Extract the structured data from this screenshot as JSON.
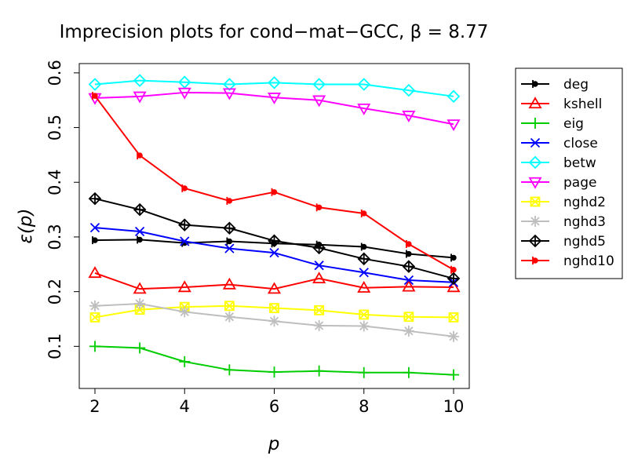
{
  "chart_data": {
    "type": "line",
    "title": "Imprecision plots for cond−mat−GCC, β = 8.77",
    "xlabel": "p",
    "ylabel": "ε(p)",
    "xlim": [
      1.65,
      10.35
    ],
    "ylim": [
      0.023,
      0.617
    ],
    "xticks": [
      2,
      4,
      6,
      8,
      10
    ],
    "yticks": [
      0.1,
      0.2,
      0.3,
      0.4,
      0.5,
      0.6
    ],
    "x": [
      2,
      3,
      4,
      5,
      6,
      7,
      8,
      9,
      10
    ],
    "grid": false,
    "legend_position": "outside-right",
    "series": [
      {
        "name": "deg",
        "color": "#000000",
        "marker": "tri-left",
        "values": [
          0.294,
          0.295,
          0.289,
          0.292,
          0.288,
          0.286,
          0.282,
          0.269,
          0.262
        ]
      },
      {
        "name": "kshell",
        "color": "#ff0000",
        "marker": "triangle-up",
        "values": [
          0.234,
          0.205,
          0.208,
          0.213,
          0.205,
          0.224,
          0.207,
          0.209,
          0.208
        ]
      },
      {
        "name": "eig",
        "color": "#00cd00",
        "marker": "plus",
        "values": [
          0.1,
          0.097,
          0.072,
          0.057,
          0.053,
          0.055,
          0.052,
          0.052,
          0.048
        ]
      },
      {
        "name": "close",
        "color": "#0000ff",
        "marker": "cross",
        "values": [
          0.317,
          0.31,
          0.292,
          0.279,
          0.271,
          0.248,
          0.235,
          0.221,
          0.217
        ]
      },
      {
        "name": "betw",
        "color": "#00ffff",
        "marker": "diamond",
        "values": [
          0.579,
          0.586,
          0.583,
          0.579,
          0.582,
          0.579,
          0.579,
          0.568,
          0.557
        ]
      },
      {
        "name": "page",
        "color": "#ff00ff",
        "marker": "triangle-down",
        "values": [
          0.554,
          0.557,
          0.564,
          0.563,
          0.555,
          0.55,
          0.535,
          0.522,
          0.506
        ]
      },
      {
        "name": "nghd2",
        "color": "#ffff00",
        "marker": "square-x",
        "values": [
          0.153,
          0.167,
          0.172,
          0.174,
          0.17,
          0.166,
          0.158,
          0.154,
          0.153
        ]
      },
      {
        "name": "nghd3",
        "color": "#bebebe",
        "marker": "asterisk",
        "values": [
          0.174,
          0.178,
          0.163,
          0.154,
          0.146,
          0.138,
          0.137,
          0.128,
          0.118
        ]
      },
      {
        "name": "nghd5",
        "color": "#000000",
        "marker": "diamond-plus",
        "values": [
          0.37,
          0.35,
          0.322,
          0.316,
          0.293,
          0.28,
          0.26,
          0.246,
          0.224
        ]
      },
      {
        "name": "nghd10",
        "color": "#ff0000",
        "marker": "tri-left",
        "values": [
          0.558,
          0.449,
          0.389,
          0.366,
          0.382,
          0.354,
          0.343,
          0.287,
          0.24
        ]
      }
    ]
  }
}
